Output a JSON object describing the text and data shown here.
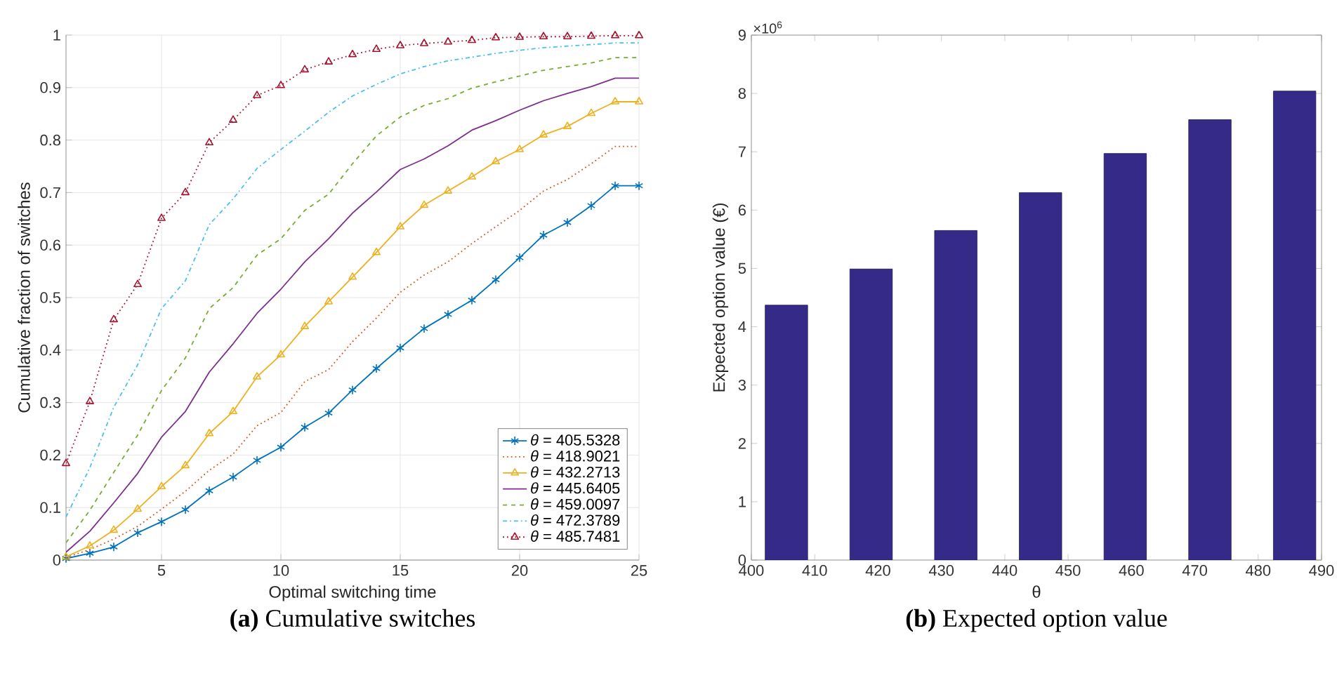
{
  "chart_data": [
    {
      "type": "line",
      "title": "**(a)** Cumulative switches",
      "xlabel": "Optimal switching time",
      "ylabel": "Cumulative fraction of switches",
      "x": [
        1,
        2,
        3,
        4,
        5,
        6,
        7,
        8,
        9,
        10,
        11,
        12,
        13,
        14,
        15,
        16,
        17,
        18,
        19,
        20,
        21,
        22,
        23,
        24,
        25
      ],
      "xlim": [
        1,
        25
      ],
      "xticks": [
        5,
        10,
        15,
        20,
        25
      ],
      "ylim": [
        0,
        1
      ],
      "yticks": [
        0,
        0.1,
        0.2,
        0.3,
        0.4,
        0.5,
        0.6,
        0.7,
        0.8,
        0.9,
        1
      ],
      "grid": true,
      "legend": "bottom right",
      "series": [
        {
          "name": "*θ*  = 405.5328",
          "color": "#0072bd",
          "marker": "cross",
          "line_style": "solid",
          "values": [
            0.003,
            0.013,
            0.025,
            0.052,
            0.073,
            0.096,
            0.132,
            0.158,
            0.19,
            0.215,
            0.253,
            0.28,
            0.324,
            0.365,
            0.404,
            0.441,
            0.468,
            0.495,
            0.534,
            0.576,
            0.619,
            0.643,
            0.675,
            0.713,
            0.713
          ]
        },
        {
          "name": "*θ*  = 418.9021",
          "color": "#d95319",
          "marker": "none",
          "line_style": "dotted",
          "values": [
            0.005,
            0.02,
            0.04,
            0.064,
            0.097,
            0.131,
            0.171,
            0.202,
            0.256,
            0.281,
            0.34,
            0.363,
            0.416,
            0.461,
            0.51,
            0.543,
            0.568,
            0.603,
            0.635,
            0.666,
            0.703,
            0.725,
            0.755,
            0.788,
            0.788
          ]
        },
        {
          "name": "*θ*  = 432.2713",
          "color": "#edb120",
          "marker": "triangle",
          "line_style": "solid",
          "values": [
            0.006,
            0.027,
            0.057,
            0.097,
            0.14,
            0.18,
            0.241,
            0.283,
            0.349,
            0.391,
            0.445,
            0.492,
            0.539,
            0.586,
            0.635,
            0.676,
            0.703,
            0.73,
            0.759,
            0.782,
            0.81,
            0.826,
            0.851,
            0.873,
            0.873
          ]
        },
        {
          "name": "*θ*  = 445.6405",
          "color": "#7e2f8e",
          "marker": "none",
          "line_style": "solid",
          "values": [
            0.015,
            0.055,
            0.109,
            0.165,
            0.234,
            0.283,
            0.358,
            0.412,
            0.47,
            0.516,
            0.568,
            0.612,
            0.661,
            0.701,
            0.744,
            0.764,
            0.789,
            0.819,
            0.837,
            0.857,
            0.875,
            0.889,
            0.902,
            0.918,
            0.918
          ]
        },
        {
          "name": "*θ*  = 459.0097",
          "color": "#77ac30",
          "marker": "none",
          "line_style": "dashed",
          "values": [
            0.033,
            0.095,
            0.167,
            0.238,
            0.323,
            0.385,
            0.479,
            0.519,
            0.581,
            0.612,
            0.666,
            0.697,
            0.755,
            0.808,
            0.844,
            0.866,
            0.879,
            0.899,
            0.911,
            0.922,
            0.933,
            0.94,
            0.947,
            0.957,
            0.957
          ]
        },
        {
          "name": "*θ*  = 472.3789",
          "color": "#4dbeee",
          "marker": "none",
          "line_style": "dashdot",
          "values": [
            0.082,
            0.176,
            0.291,
            0.372,
            0.479,
            0.532,
            0.639,
            0.688,
            0.746,
            0.782,
            0.817,
            0.853,
            0.884,
            0.906,
            0.926,
            0.94,
            0.951,
            0.958,
            0.965,
            0.971,
            0.976,
            0.979,
            0.982,
            0.985,
            0.985
          ]
        },
        {
          "name": "*θ*  = 485.7481",
          "color": "#a2142f",
          "marker": "triangle",
          "line_style": "dotted",
          "values": [
            0.184,
            0.302,
            0.458,
            0.525,
            0.651,
            0.7,
            0.795,
            0.838,
            0.885,
            0.904,
            0.934,
            0.949,
            0.963,
            0.973,
            0.98,
            0.984,
            0.987,
            0.99,
            0.995,
            0.996,
            0.997,
            0.997,
            0.998,
            0.999,
            0.999
          ]
        }
      ]
    },
    {
      "type": "bar",
      "title": "**(b)** Expected option value",
      "xlabel": "θ",
      "ylabel": "Expected option value (€)",
      "annotations": [
        "×10$^{6}$"
      ],
      "x": [
        405.5328,
        418.9021,
        432.2713,
        445.6405,
        459.0097,
        472.3789,
        485.7481
      ],
      "values": [
        4.37,
        4.99,
        5.65,
        6.3,
        6.97,
        7.55,
        8.04
      ],
      "color": "#352a87",
      "xlim": [
        400,
        490
      ],
      "xticks": [
        400,
        410,
        420,
        430,
        440,
        450,
        460,
        470,
        480,
        490
      ],
      "ylim": [
        0,
        9
      ],
      "yticks": [
        0,
        1,
        2,
        3,
        4,
        5,
        6,
        7,
        8,
        9
      ]
    }
  ]
}
